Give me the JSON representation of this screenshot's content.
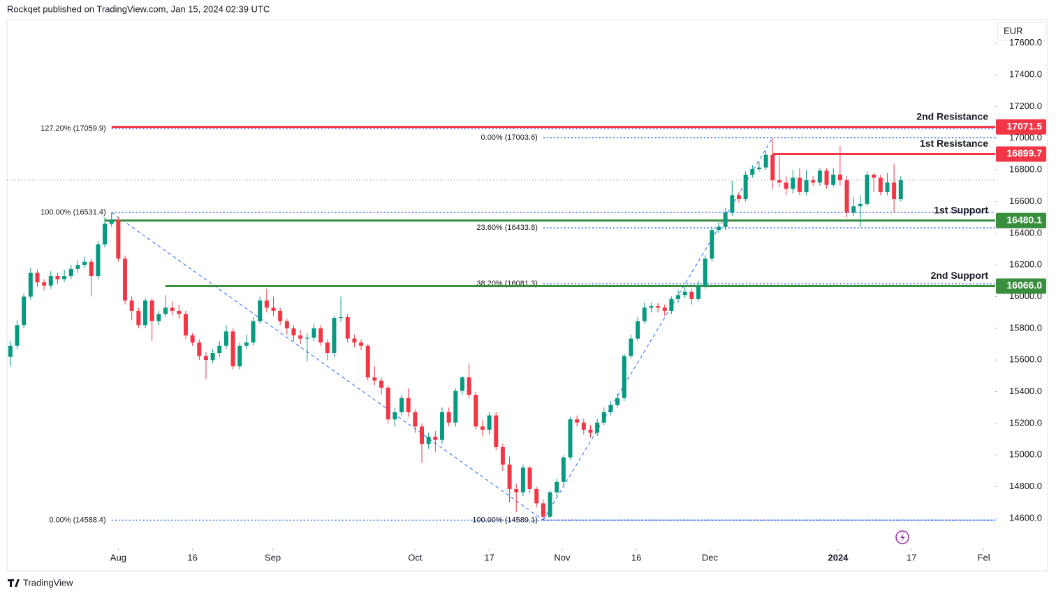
{
  "header": "Rockqet published on TradingView.com, Jan 15, 2024 02:39 UTC",
  "brand": "TradingView",
  "chart_data": {
    "type": "candlestick",
    "currency": "EUR",
    "up_color": "#089981",
    "down_color": "#f23645",
    "fib_color": "#2962ff",
    "xlim": [
      -0.5,
      146
    ],
    "xticks": [
      {
        "value": 16,
        "label": "Aug"
      },
      {
        "value": 27,
        "label": "16"
      },
      {
        "value": 38.9,
        "label": "Sep"
      },
      {
        "value": 60,
        "label": "Oct"
      },
      {
        "value": 71,
        "label": "17"
      },
      {
        "value": 81.8,
        "label": "Nov"
      },
      {
        "value": 92.8,
        "label": "16"
      },
      {
        "value": 103.7,
        "label": "Dec"
      },
      {
        "value": 122.7,
        "label": "2024"
      },
      {
        "value": 133.6,
        "label": "17"
      },
      {
        "value": 144.3,
        "label": "Fel"
      }
    ],
    "ylim": [
      14410,
      17740
    ],
    "yticks": [
      {
        "value": 14600,
        "label": "14600.0"
      },
      {
        "value": 14800,
        "label": "14800.0"
      },
      {
        "value": 15000,
        "label": "15000.0"
      },
      {
        "value": 15200,
        "label": "15200.0"
      },
      {
        "value": 15400,
        "label": "15400.0"
      },
      {
        "value": 15600,
        "label": "15600.0"
      },
      {
        "value": 15800,
        "label": "15800.0"
      },
      {
        "value": 16000,
        "label": "16000.0"
      },
      {
        "value": 16200,
        "label": "16200.0"
      },
      {
        "value": 16400,
        "label": "16400.0"
      },
      {
        "value": 16600,
        "label": "16600.0"
      },
      {
        "value": 16800,
        "label": "16800.0"
      },
      {
        "value": 17000,
        "label": "17000.0"
      },
      {
        "value": 17200,
        "label": "17200.0"
      },
      {
        "value": 17400,
        "label": "17400.0"
      },
      {
        "value": 17600,
        "label": "17600.0"
      }
    ],
    "open": [
      15620,
      15690,
      15820,
      16000,
      16150,
      16090,
      16070,
      16130,
      16110,
      16130,
      16175,
      16200,
      16220,
      16130,
      16330,
      16460,
      16485,
      16240,
      15975,
      15910,
      15820,
      15975,
      15845,
      15890,
      15930,
      15910,
      15890,
      15755,
      15710,
      15625,
      15600,
      15645,
      15690,
      15780,
      15560,
      15690,
      15710,
      15845,
      15975,
      15930,
      15910,
      15845,
      15800,
      15755,
      15735,
      15740,
      15800,
      15710,
      15645,
      15865,
      15870,
      15735,
      15710,
      15690,
      15490,
      15470,
      15425,
      15225,
      15270,
      15360,
      15270,
      15180,
      15070,
      15115,
      15095,
      15270,
      15205,
      15405,
      15490,
      15380,
      15180,
      15160,
      15250,
      15050,
      14940,
      14785,
      14765,
      14920,
      14785,
      14695,
      14610,
      14765,
      14830,
      14985,
      15225,
      15205,
      15160,
      15140,
      15205,
      15270,
      15315,
      15360,
      15625,
      15735,
      15845,
      15930,
      15940,
      15930,
      15910,
      15985,
      16010,
      16030,
      15985,
      16065,
      16240,
      16420,
      16440,
      16530,
      16640,
      16615,
      16770,
      16805,
      16815,
      16895,
      16735,
      16720,
      16680,
      16750,
      16660,
      16735,
      16720,
      16795,
      16705,
      16770,
      16735,
      16530,
      16570,
      16585,
      16770,
      16750,
      16660,
      16720,
      16615
    ],
    "high": [
      15720,
      15850,
      16020,
      16180,
      16170,
      16110,
      16160,
      16150,
      16170,
      16200,
      16230,
      16250,
      16240,
      16350,
      16500,
      16531,
      16500,
      16260,
      16000,
      15930,
      15990,
      15990,
      15910,
      16010,
      15970,
      15950,
      15910,
      15770,
      15730,
      15650,
      15670,
      15720,
      15820,
      15800,
      15710,
      15760,
      15870,
      16000,
      16050,
      16000,
      15930,
      15860,
      15820,
      15790,
      15770,
      15830,
      15820,
      15730,
      15880,
      16000,
      15890,
      15760,
      15730,
      15700,
      15560,
      15490,
      15440,
      15300,
      15380,
      15420,
      15290,
      15200,
      15140,
      15150,
      15300,
      15300,
      15420,
      15500,
      15580,
      15400,
      15220,
      15270,
      15270,
      15070,
      14990,
      14820,
      14940,
      14930,
      14800,
      14720,
      14780,
      14850,
      15000,
      15240,
      15250,
      15230,
      15190,
      15230,
      15300,
      15340,
      15390,
      15640,
      15760,
      15870,
      15960,
      15960,
      15960,
      15950,
      16000,
      16040,
      16060,
      16050,
      16100,
      16260,
      16440,
      16470,
      16560,
      16730,
      16660,
      16790,
      16830,
      16850,
      16920,
      17003,
      16900,
      16760,
      16800,
      16810,
      16800,
      16760,
      16810,
      16810,
      16810,
      16950,
      16760,
      16630,
      16640,
      16790,
      16780,
      16770,
      16780,
      16840,
      16760
    ],
    "low": [
      15560,
      15670,
      15800,
      15980,
      16060,
      16040,
      16050,
      16080,
      16090,
      16110,
      16150,
      16180,
      16000,
      16110,
      16310,
      16440,
      16220,
      15950,
      15850,
      15800,
      15800,
      15720,
      15820,
      15870,
      15880,
      15860,
      15730,
      15690,
      15600,
      15480,
      15580,
      15620,
      15670,
      15540,
      15540,
      15670,
      15690,
      15830,
      15900,
      15880,
      15820,
      15760,
      15720,
      15700,
      15590,
      15720,
      15690,
      15600,
      15620,
      15840,
      15710,
      15680,
      15660,
      15470,
      15440,
      15380,
      15200,
      15180,
      15250,
      15240,
      15140,
      14950,
      15040,
      15020,
      15070,
      15180,
      15180,
      15380,
      15360,
      15160,
      15120,
      15130,
      15030,
      14900,
      14700,
      14640,
      14740,
      14760,
      14670,
      14589,
      14600,
      14740,
      14810,
      14970,
      15180,
      15130,
      15110,
      15120,
      15190,
      15250,
      15300,
      15340,
      15610,
      15720,
      15830,
      15900,
      15900,
      15880,
      15890,
      15960,
      15990,
      15950,
      15970,
      16050,
      16220,
      16400,
      16420,
      16510,
      16590,
      16600,
      16750,
      16790,
      16800,
      16680,
      16690,
      16640,
      16650,
      16640,
      16640,
      16700,
      16700,
      16680,
      16690,
      16700,
      16500,
      16510,
      16440,
      16570,
      16660,
      16640,
      16640,
      16530,
      16600
    ],
    "close": [
      15690,
      15820,
      16000,
      16150,
      16090,
      16070,
      16130,
      16110,
      16130,
      16175,
      16200,
      16220,
      16130,
      16330,
      16460,
      16485,
      16240,
      15975,
      15910,
      15820,
      15975,
      15845,
      15890,
      15930,
      15910,
      15890,
      15755,
      15710,
      15625,
      15600,
      15645,
      15690,
      15780,
      15560,
      15690,
      15710,
      15845,
      15975,
      15930,
      15910,
      15845,
      15800,
      15755,
      15735,
      15740,
      15800,
      15710,
      15645,
      15865,
      15870,
      15735,
      15710,
      15690,
      15490,
      15470,
      15425,
      15225,
      15270,
      15360,
      15270,
      15180,
      15070,
      15115,
      15095,
      15270,
      15205,
      15405,
      15490,
      15380,
      15180,
      15160,
      15250,
      15050,
      14940,
      14785,
      14765,
      14920,
      14785,
      14695,
      14610,
      14765,
      14830,
      14985,
      15225,
      15205,
      15160,
      15140,
      15205,
      15270,
      15315,
      15360,
      15625,
      15735,
      15845,
      15930,
      15940,
      15930,
      15910,
      15985,
      16010,
      16030,
      15985,
      16065,
      16240,
      16420,
      16440,
      16530,
      16640,
      16615,
      16770,
      16805,
      16815,
      16895,
      16735,
      16720,
      16680,
      16750,
      16660,
      16735,
      16720,
      16795,
      16705,
      16770,
      16735,
      16530,
      16570,
      16585,
      16770,
      16750,
      16660,
      16720,
      16615,
      16735
    ],
    "levels": [
      {
        "label": "2nd Resistance",
        "value": 17071.5,
        "value_label": "17071.5",
        "color": "#f23645",
        "x_start": 15
      },
      {
        "label": "1st Resistance",
        "value": 16899.7,
        "value_label": "16899.7",
        "color": "#f23645",
        "x_start": 113
      },
      {
        "label": "1st Support",
        "value": 16480.1,
        "value_label": "16480.1",
        "color": "#388e3c",
        "x_start": 14
      },
      {
        "label": "2nd Support",
        "value": 16066.0,
        "value_label": "16066.0",
        "color": "#388e3c",
        "x_start": 23
      }
    ],
    "fib_levels": [
      {
        "label": "127.20% (17059.9)",
        "value": 17059.9,
        "x_start": 15
      },
      {
        "label": "100.00% (16531.4)",
        "value": 16531.4,
        "x_start": 15
      },
      {
        "label": "0.00% (14588.4)",
        "value": 14588.4,
        "x_start": 15
      },
      {
        "label": "0.00% (17003.6)",
        "value": 17003.6,
        "x_start": 79
      },
      {
        "label": "23.60% (16433.8)",
        "value": 16433.8,
        "x_start": 79
      },
      {
        "label": "38.20% (16081.3)",
        "value": 16081.3,
        "x_start": 79
      },
      {
        "label": "100.00% (14589.1)",
        "value": 14589.1,
        "x_start": 79
      }
    ],
    "trend_lines": [
      {
        "x": [
          15,
          79
        ],
        "y": [
          16531.4,
          14589.1
        ]
      },
      {
        "x": [
          79,
          113
        ],
        "y": [
          14589.1,
          17003.6
        ]
      }
    ]
  }
}
